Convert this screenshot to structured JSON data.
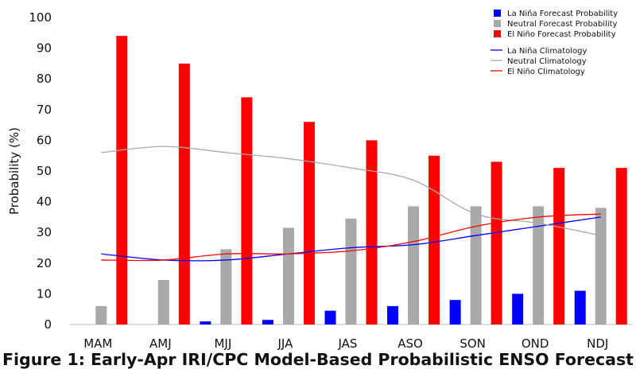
{
  "chart_data": {
    "type": "bar",
    "title": "",
    "xlabel": "",
    "ylabel": "Probability (%)",
    "ylim": [
      0,
      100
    ],
    "yticks": [
      0,
      10,
      20,
      30,
      40,
      50,
      60,
      70,
      80,
      90,
      100
    ],
    "grid": false,
    "legend_position": "top-right",
    "categories": [
      "MAM",
      "AMJ",
      "MJJ",
      "JJA",
      "JAS",
      "ASO",
      "SON",
      "OND",
      "NDJ"
    ],
    "series": [
      {
        "name": "La Niña Forecast Probability",
        "kind": "bar",
        "color": "#0000ff",
        "values": [
          0,
          0,
          1,
          1.5,
          4.5,
          6,
          8,
          10,
          11
        ]
      },
      {
        "name": "Neutral Forecast Probability",
        "kind": "bar",
        "color": "#a9a9a9",
        "values": [
          6,
          14.5,
          24.5,
          31.5,
          34.5,
          38.5,
          38.5,
          38.5,
          38
        ]
      },
      {
        "name": "El Niño Forecast Probability",
        "kind": "bar",
        "color": "#ff0000",
        "values": [
          94,
          85,
          74,
          66,
          60,
          55,
          53,
          51,
          51
        ]
      },
      {
        "name": "La Niña Climatology",
        "kind": "line",
        "color": "#0000ff",
        "values": [
          23,
          21,
          21,
          23,
          25,
          26,
          29,
          32,
          35
        ]
      },
      {
        "name": "Neutral Climatology",
        "kind": "line",
        "color": "#a9a9a9",
        "values": [
          56,
          58,
          56,
          54,
          51,
          47,
          36,
          33,
          29
        ]
      },
      {
        "name": "El Niño Climatology",
        "kind": "line",
        "color": "#ff0000",
        "values": [
          21,
          21,
          23,
          23,
          24,
          27,
          32,
          35,
          36
        ]
      }
    ]
  },
  "caption": "Figure 1: Early-Apr IRI/CPC Model-Based Probabilistic ENSO Forecast"
}
